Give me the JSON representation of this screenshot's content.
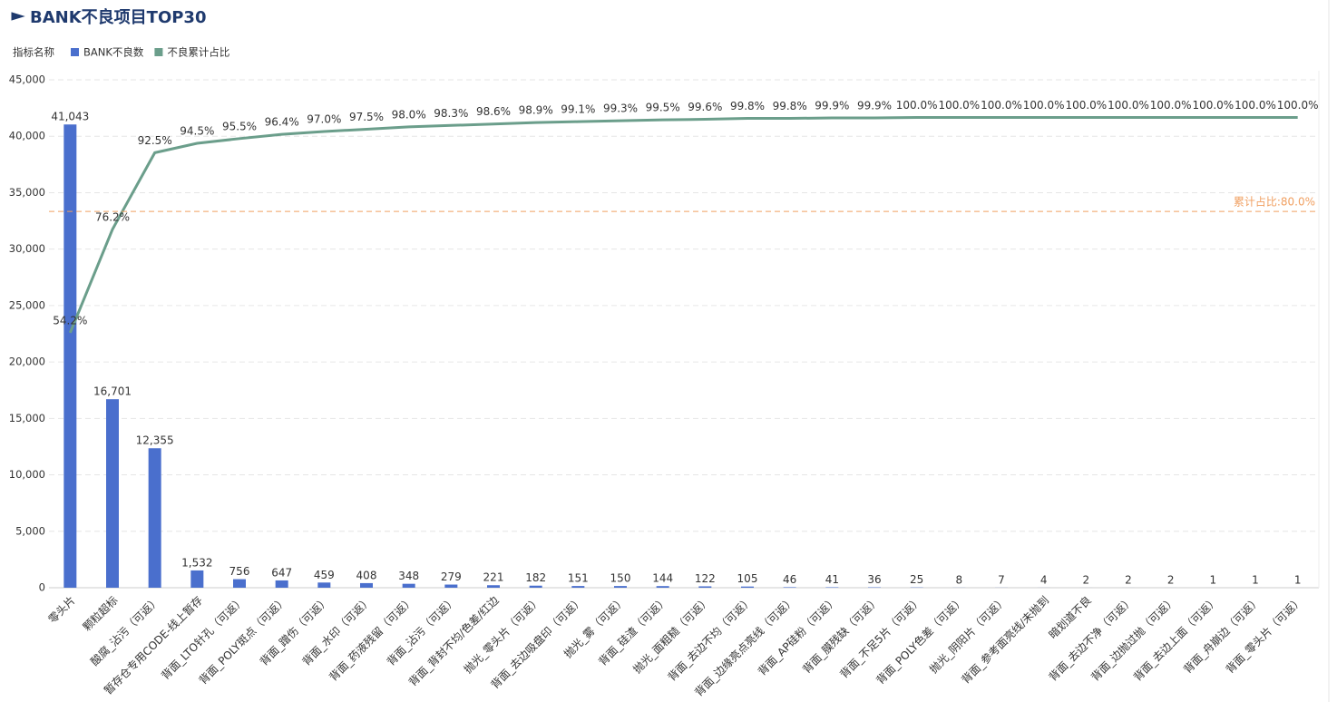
{
  "chart_data": {
    "type": "pareto",
    "title": "BANK不良项目TOP30",
    "legend_title": "指标名称",
    "categories": [
      "零头片",
      "颗粒超标",
      "酸腐_沾污（可返）",
      "暂存仓专用CODE-线上暂存",
      "背面_LTO针孔（可返）",
      "背面_POLY斑点（可返）",
      "背面_蹭伤（可返）",
      "背面_水印（可返）",
      "背面_药液残留（可返）",
      "背面_沾污（可返）",
      "背面_背封不均/色差/红边",
      "抛光_零头片（可返）",
      "背面_去边吸盘印（可返）",
      "抛光_雾（可返）",
      "背面_硅渣（可返）",
      "抛光_面粗糙（可返）",
      "背面_去边不均（可返）",
      "背面_边缘亮点亮线（可返）",
      "背面_AP硅粉（可返）",
      "背面_膜残缺（可返）",
      "背面_不足5片（可返）",
      "背面_POLY色差（可返）",
      "抛光_阴阳片（可返）",
      "背面_参考面亮线/未抛到",
      "暗划道不良",
      "背面_去边不净（可返）",
      "背面_边抛过抛（可返）",
      "背面_去边上面（可返）",
      "背面_舟崩边（可返）",
      "背面_零头片（可返）"
    ],
    "series": [
      {
        "name": "BANK不良数",
        "color": "#4a6fcd",
        "kind": "bar",
        "values": [
          41043,
          16701,
          12355,
          1532,
          756,
          647,
          459,
          408,
          348,
          279,
          221,
          182,
          151,
          150,
          144,
          122,
          105,
          46,
          41,
          36,
          25,
          8,
          7,
          4,
          2,
          2,
          2,
          1,
          1,
          1
        ],
        "value_labels": [
          "41,043",
          "16,701",
          "12,355",
          "1,532",
          "756",
          "647",
          "459",
          "408",
          "348",
          "279",
          "221",
          "182",
          "151",
          "150",
          "144",
          "122",
          "105",
          "46",
          "41",
          "36",
          "25",
          "8",
          "7",
          "4",
          "2",
          "2",
          "2",
          "1",
          "1",
          "1"
        ]
      },
      {
        "name": "不良累计占比",
        "color": "#6b9e8b",
        "kind": "line",
        "axis": "y2",
        "values": [
          54.2,
          76.2,
          92.5,
          94.5,
          95.5,
          96.4,
          97.0,
          97.5,
          98.0,
          98.3,
          98.6,
          98.9,
          99.1,
          99.3,
          99.5,
          99.6,
          99.8,
          99.8,
          99.9,
          99.9,
          100.0,
          100.0,
          100.0,
          100.0,
          100.0,
          100.0,
          100.0,
          100.0,
          100.0,
          100.0
        ],
        "value_labels": [
          "54.2%",
          "76.2%",
          "92.5%",
          "94.5%",
          "95.5%",
          "96.4%",
          "97.0%",
          "97.5%",
          "98.0%",
          "98.3%",
          "98.6%",
          "98.9%",
          "99.1%",
          "99.3%",
          "99.5%",
          "99.6%",
          "99.8%",
          "99.8%",
          "99.9%",
          "99.9%",
          "100.0%",
          "100.0%",
          "100.0%",
          "100.0%",
          "100.0%",
          "100.0%",
          "100.0%",
          "100.0%",
          "100.0%",
          "100.0%"
        ]
      }
    ],
    "ylim": [
      0,
      45000
    ],
    "yticks": [
      0,
      {
        "value": 5000,
        "label": "5,000"
      },
      {
        "value": 10000,
        "label": "10,000"
      },
      {
        "value": 15000,
        "label": "15,000"
      },
      {
        "value": 20000,
        "label": "20,000"
      },
      {
        "value": 25000,
        "label": "25,000"
      },
      {
        "value": 30000,
        "label": "30,000"
      },
      {
        "value": 35000,
        "label": "35,000"
      },
      {
        "value": 40000,
        "label": "40,000"
      },
      {
        "value": 45000,
        "label": "45,000"
      }
    ],
    "y2lim": [
      0,
      108
    ],
    "mark_line": {
      "value": 80,
      "label": "累计占比:80.0%",
      "color": "#f0a062",
      "axis": "y2"
    },
    "grid": true
  }
}
